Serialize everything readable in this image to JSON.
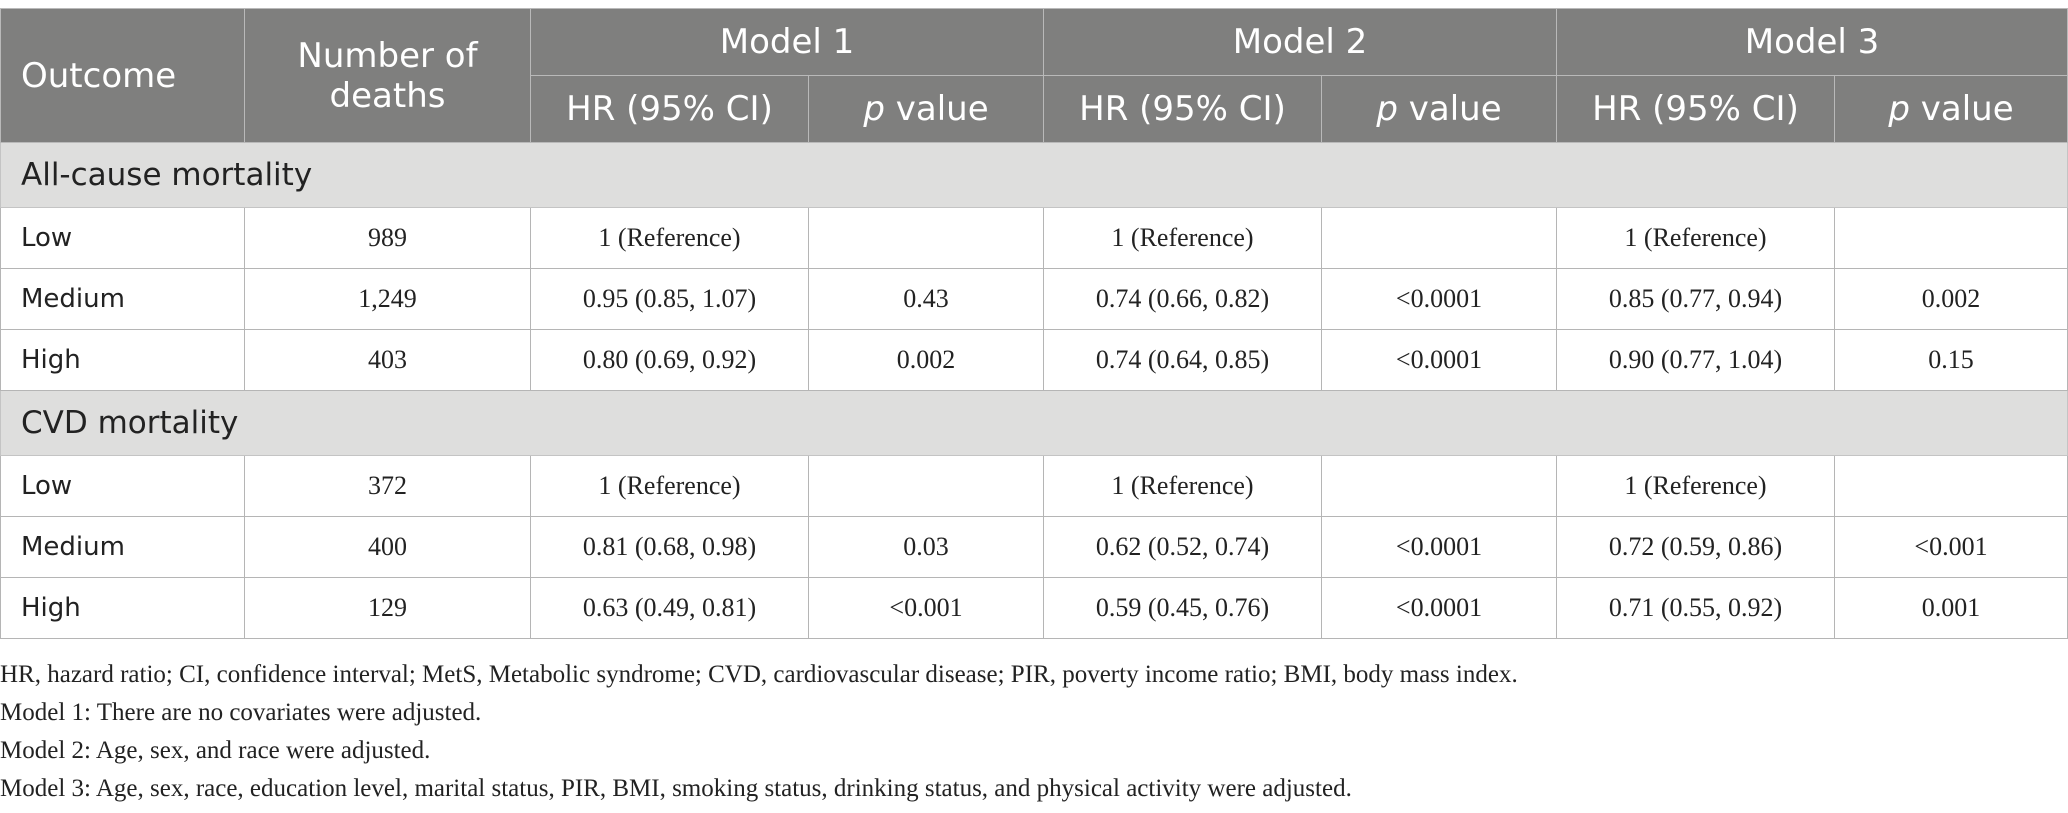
{
  "headers": {
    "outcome": "Outcome",
    "deaths": "Number of deaths",
    "model1": "Model 1",
    "model2": "Model 2",
    "model3": "Model 3",
    "hr": "HR (95% CI)",
    "p_italic": "p",
    "p_suffix": " value"
  },
  "sections": [
    {
      "title": "All-cause mortality",
      "rows": [
        {
          "label": "Low",
          "deaths": "989",
          "m1_hr": "1 (Reference)",
          "m1_p": "",
          "m2_hr": "1 (Reference)",
          "m2_p": "",
          "m3_hr": "1 (Reference)",
          "m3_p": ""
        },
        {
          "label": "Medium",
          "deaths": "1,249",
          "m1_hr": "0.95 (0.85, 1.07)",
          "m1_p": "0.43",
          "m2_hr": "0.74 (0.66, 0.82)",
          "m2_p": "<0.0001",
          "m3_hr": "0.85 (0.77, 0.94)",
          "m3_p": "0.002"
        },
        {
          "label": "High",
          "deaths": "403",
          "m1_hr": "0.80 (0.69, 0.92)",
          "m1_p": "0.002",
          "m2_hr": "0.74 (0.64, 0.85)",
          "m2_p": "<0.0001",
          "m3_hr": "0.90 (0.77, 1.04)",
          "m3_p": "0.15"
        }
      ]
    },
    {
      "title": "CVD mortality",
      "rows": [
        {
          "label": "Low",
          "deaths": "372",
          "m1_hr": "1 (Reference)",
          "m1_p": "",
          "m2_hr": "1 (Reference)",
          "m2_p": "",
          "m3_hr": "1 (Reference)",
          "m3_p": ""
        },
        {
          "label": "Medium",
          "deaths": "400",
          "m1_hr": "0.81 (0.68, 0.98)",
          "m1_p": "0.03",
          "m2_hr": "0.62 (0.52, 0.74)",
          "m2_p": "<0.0001",
          "m3_hr": "0.72 (0.59, 0.86)",
          "m3_p": "<0.001"
        },
        {
          "label": "High",
          "deaths": "129",
          "m1_hr": "0.63 (0.49, 0.81)",
          "m1_p": "<0.001",
          "m2_hr": "0.59 (0.45, 0.76)",
          "m2_p": "<0.0001",
          "m3_hr": "0.71 (0.55, 0.92)",
          "m3_p": "0.001"
        }
      ]
    }
  ],
  "notes": [
    "HR, hazard ratio; CI, confidence interval; MetS, Metabolic syndrome; CVD, cardiovascular disease; PIR, poverty income ratio; BMI, body mass index.",
    "Model 1: There are no covariates were adjusted.",
    "Model 2: Age, sex, and race were adjusted.",
    "Model 3: Age, sex, race, education level, marital status, PIR, BMI, smoking status, drinking status, and physical activity were adjusted."
  ]
}
